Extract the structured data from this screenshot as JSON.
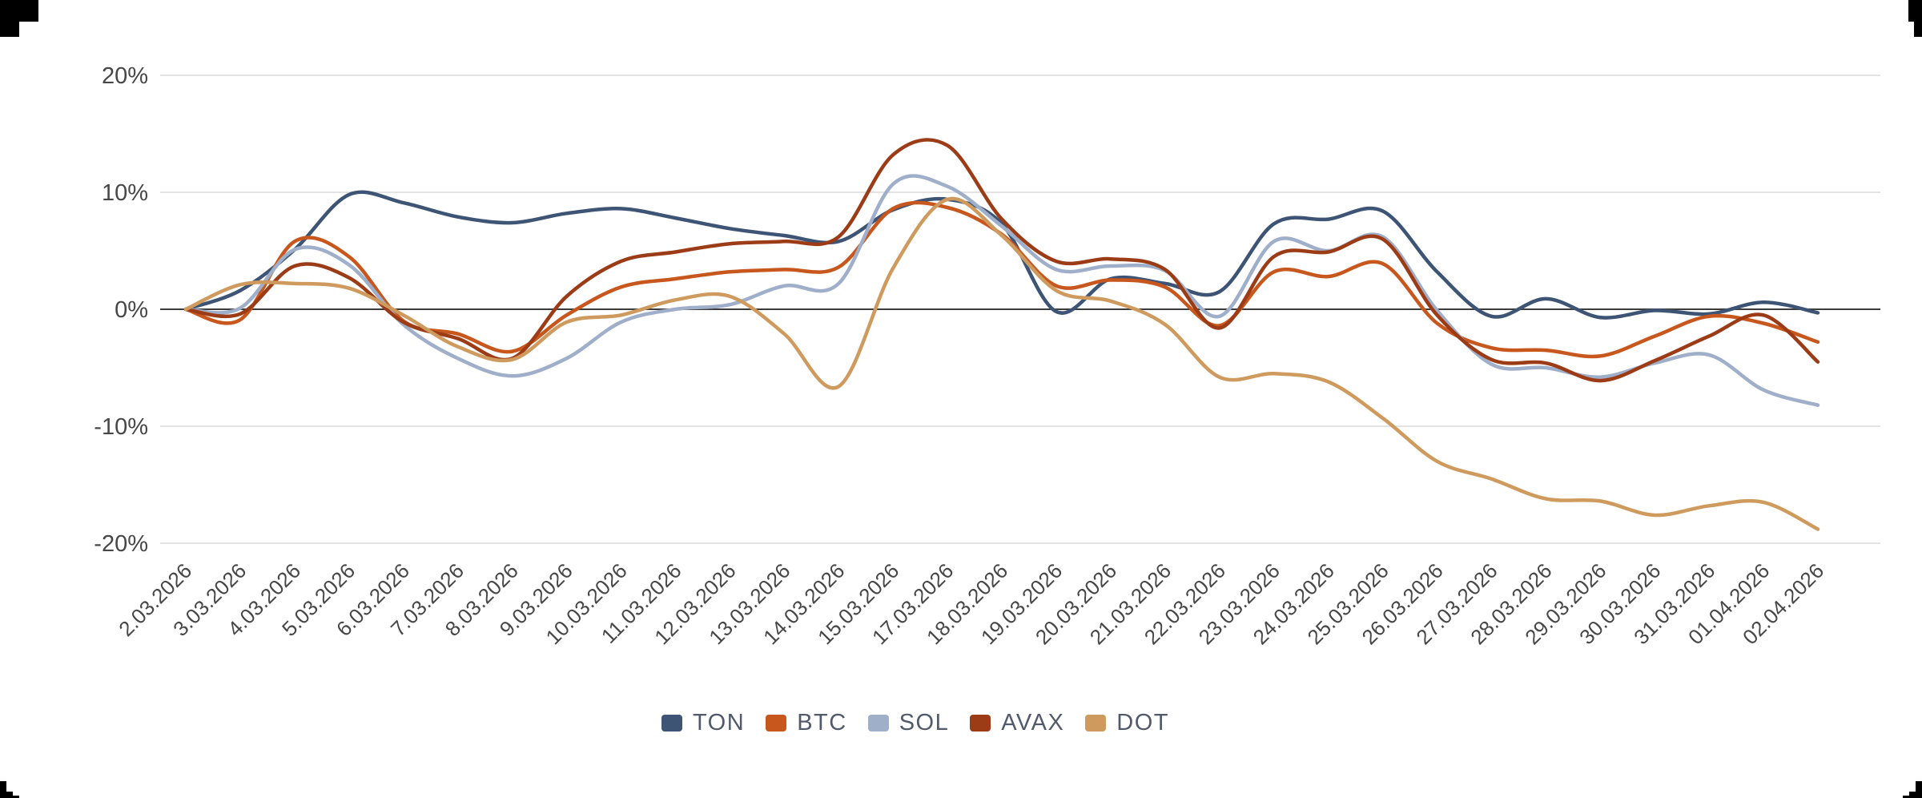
{
  "page": {
    "background": "#ffffff"
  },
  "chart_data": {
    "type": "line",
    "title": "",
    "unit": "%",
    "grid": "horizontal",
    "legend_position": "bottom",
    "x_label_rotation": -45,
    "categories": [
      "2.03.2026",
      "3.03.2026",
      "4.03.2026",
      "5.03.2026",
      "6.03.2026",
      "7.03.2026",
      "8.03.2026",
      "9.03.2026",
      "10.03.2026",
      "11.03.2026",
      "12.03.2026",
      "13.03.2026",
      "14.03.2026",
      "15.03.2026",
      "17.03.2026",
      "18.03.2026",
      "19.03.2026",
      "20.03.2026",
      "21.03.2026",
      "22.03.2026",
      "23.03.2026",
      "24.03.2026",
      "25.03.2026",
      "26.03.2026",
      "27.03.2026",
      "28.03.2026",
      "29.03.2026",
      "30.03.2026",
      "31.03.2026",
      "01.04.2026",
      "02.04.2026"
    ],
    "y_axis": {
      "range": [
        -20,
        20
      ],
      "ticks": [
        {
          "value": 20,
          "label": "20%"
        },
        {
          "value": 10,
          "label": "10%"
        },
        {
          "value": 0,
          "label": "0%"
        },
        {
          "value": -10,
          "label": "-10%"
        },
        {
          "value": -20,
          "label": "-20%"
        }
      ]
    },
    "series": [
      {
        "name": "TON",
        "color": "#3d5475",
        "values": [
          0,
          1.6,
          5.1,
          9.8,
          9.1,
          7.9,
          7.4,
          8.2,
          8.6,
          7.8,
          6.9,
          6.3,
          5.8,
          8.5,
          9.4,
          7.3,
          -0.2,
          2.6,
          2.2,
          1.5,
          7.3,
          7.7,
          8.4,
          3.2,
          -0.6,
          0.9,
          -0.7,
          -0.1,
          -0.4,
          0.6,
          -0.3
        ]
      },
      {
        "name": "BTC",
        "color": "#c8571e",
        "values": [
          0,
          -0.9,
          5.8,
          4.5,
          -1.0,
          -2.1,
          -3.6,
          -0.5,
          1.9,
          2.6,
          3.2,
          3.4,
          3.6,
          8.6,
          8.7,
          6.4,
          2.0,
          2.5,
          1.9,
          -1.4,
          3.2,
          2.8,
          3.9,
          -1.2,
          -3.3,
          -3.5,
          -4.0,
          -2.3,
          -0.6,
          -1.2,
          -2.8
        ]
      },
      {
        "name": "SOL",
        "color": "#9fafca",
        "values": [
          0,
          0.1,
          5.1,
          3.8,
          -1.3,
          -4.2,
          -5.7,
          -4.2,
          -1.1,
          0.0,
          0.4,
          2.0,
          2.2,
          10.7,
          10.5,
          7.1,
          3.4,
          3.7,
          3.3,
          -0.6,
          5.8,
          5.0,
          6.2,
          -0.1,
          -4.7,
          -5.0,
          -5.8,
          -4.6,
          -3.9,
          -6.9,
          -8.2
        ]
      },
      {
        "name": "AVAX",
        "color": "#9c3c17",
        "values": [
          0,
          -0.4,
          3.7,
          2.7,
          -1.1,
          -2.5,
          -4.2,
          1.1,
          4.1,
          4.9,
          5.6,
          5.8,
          6.2,
          13.2,
          14.0,
          7.7,
          4.1,
          4.3,
          3.4,
          -1.6,
          4.5,
          4.9,
          6.0,
          -0.5,
          -4.3,
          -4.6,
          -6.1,
          -4.4,
          -2.3,
          -0.5,
          -4.5
        ]
      },
      {
        "name": "DOT",
        "color": "#cf9a5e",
        "values": [
          0,
          2.1,
          2.2,
          1.8,
          -0.5,
          -3.2,
          -4.3,
          -1.1,
          -0.5,
          0.8,
          1.1,
          -2.1,
          -6.6,
          3.5,
          9.4,
          6.3,
          1.6,
          0.7,
          -1.3,
          -5.8,
          -5.5,
          -6.2,
          -9.3,
          -13.0,
          -14.5,
          -16.2,
          -16.4,
          -17.6,
          -16.8,
          -16.5,
          -18.8
        ]
      }
    ],
    "styles": {
      "gridline_color": "#e3e3e3",
      "zero_line_color": "#3c3c3c",
      "tick_label_color": "#474747",
      "corner_mark_color": "#000000"
    }
  }
}
